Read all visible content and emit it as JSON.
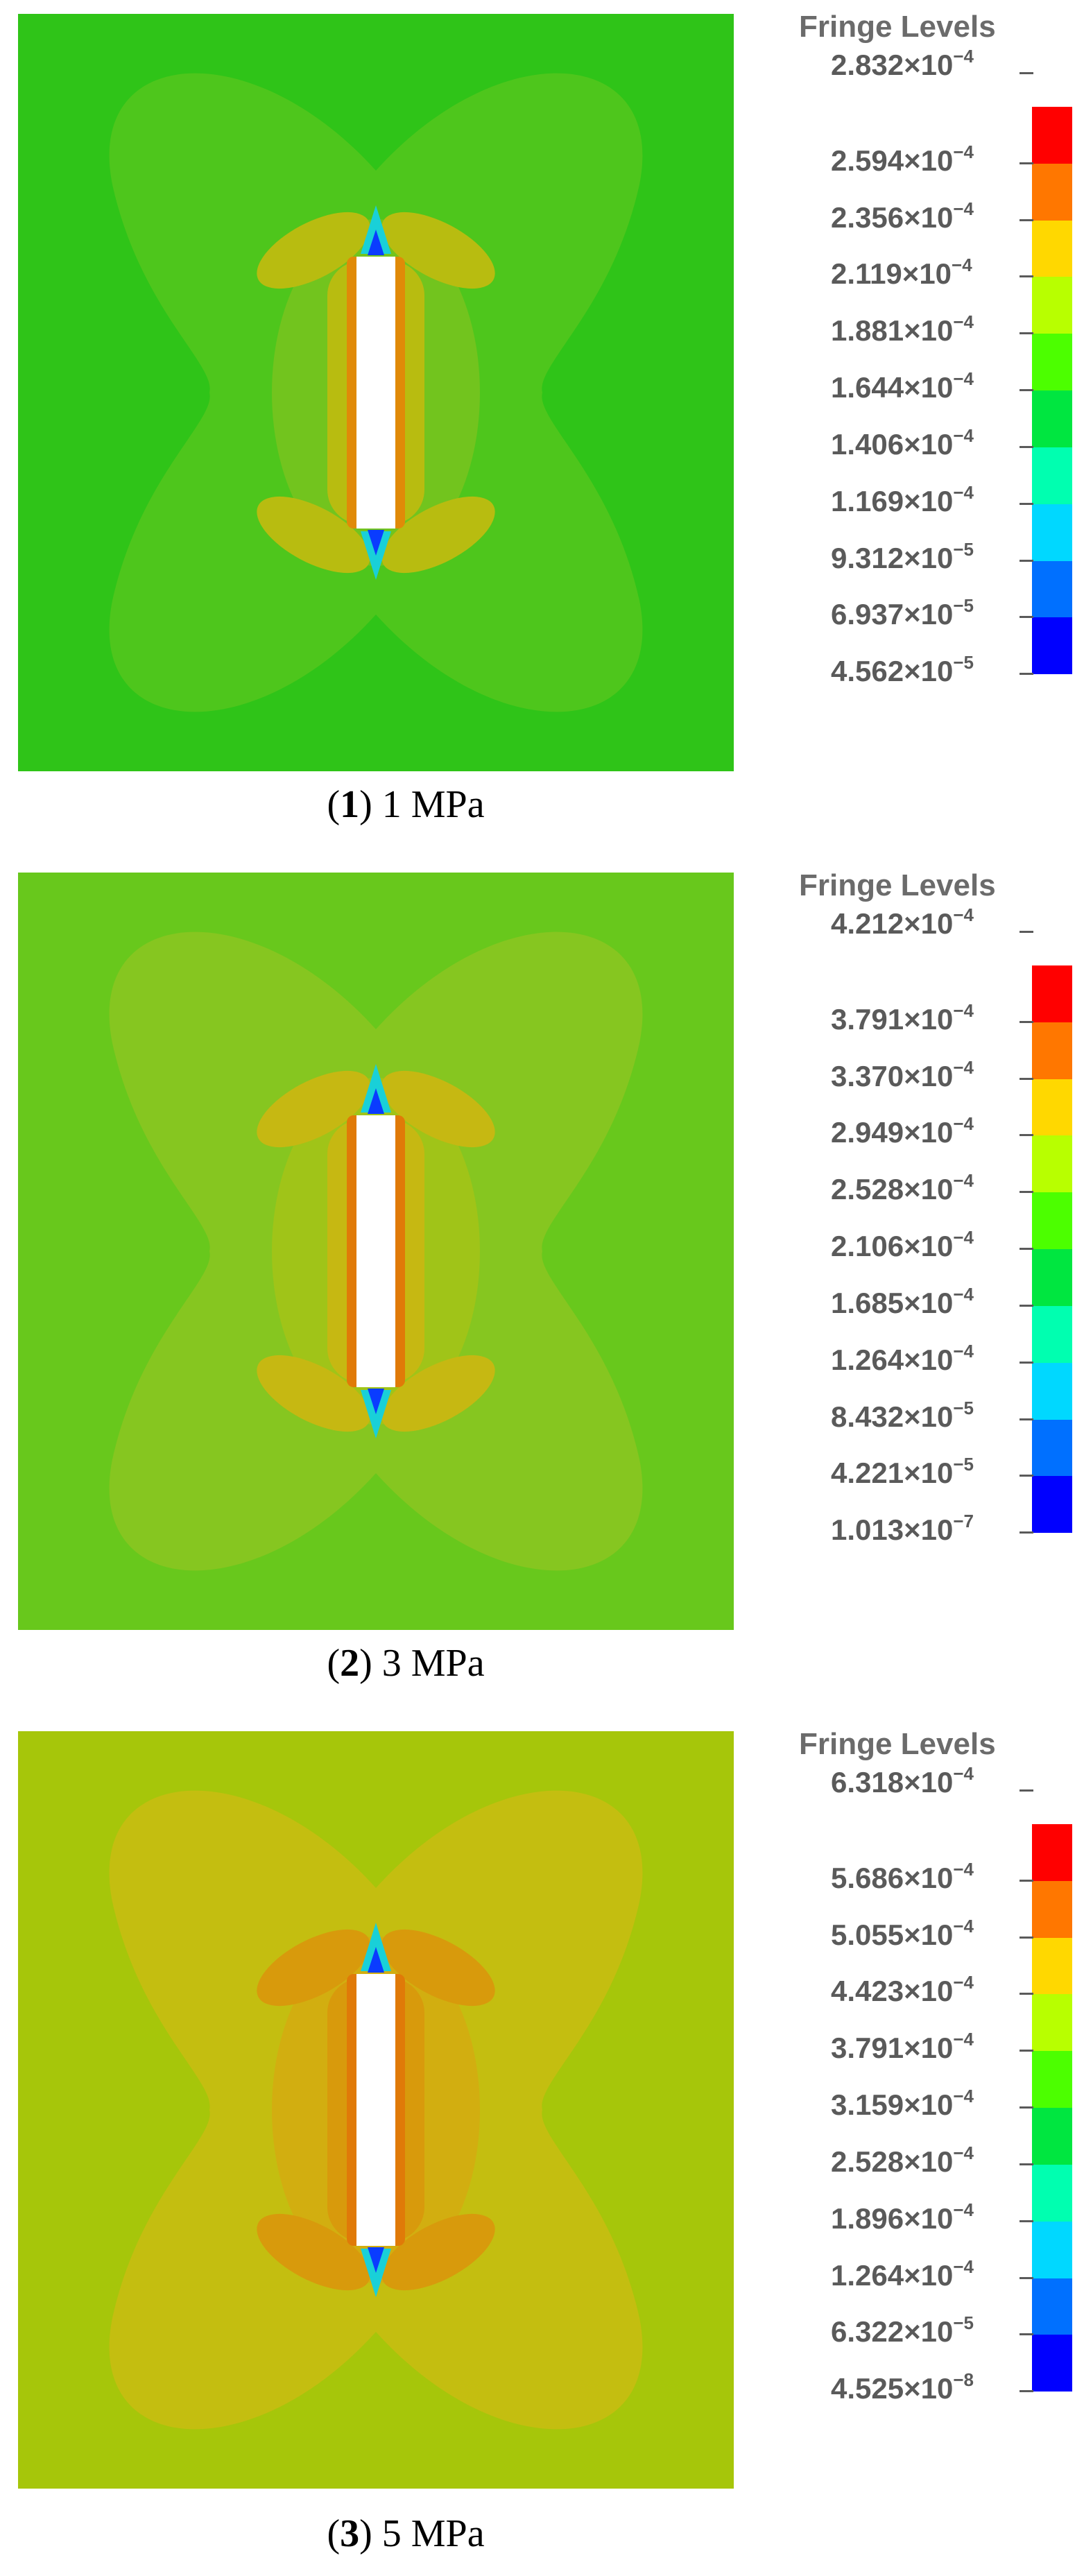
{
  "colorbar_colors": [
    "#ff0000",
    "#ff7700",
    "#ffd800",
    "#b8ff00",
    "#4cff00",
    "#00e640",
    "#00ffb0",
    "#00d8ff",
    "#0070ff",
    "#0000ff"
  ],
  "panels": [
    {
      "legend_title": "Fringe Levels",
      "levels": [
        {
          "mantissa": "2.832",
          "exp": "−4"
        },
        {
          "mantissa": "2.594",
          "exp": "−4"
        },
        {
          "mantissa": "2.356",
          "exp": "−4"
        },
        {
          "mantissa": "2.119",
          "exp": "−4"
        },
        {
          "mantissa": "1.881",
          "exp": "−4"
        },
        {
          "mantissa": "1.644",
          "exp": "−4"
        },
        {
          "mantissa": "1.406",
          "exp": "−4"
        },
        {
          "mantissa": "1.169",
          "exp": "−4"
        },
        {
          "mantissa": "9.312",
          "exp": "−5"
        },
        {
          "mantissa": "6.937",
          "exp": "−5"
        },
        {
          "mantissa": "4.562",
          "exp": "−5"
        }
      ],
      "caption_num": "1",
      "caption_text": " 1 MPa",
      "field_colors": {
        "bg": "#2fc418",
        "lobe": "#4ec61c",
        "inner": "#72c41e",
        "near": "#b8bc10",
        "edge": "#e08a08"
      }
    },
    {
      "legend_title": "Fringe Levels",
      "levels": [
        {
          "mantissa": "4.212",
          "exp": "−4"
        },
        {
          "mantissa": "3.791",
          "exp": "−4"
        },
        {
          "mantissa": "3.370",
          "exp": "−4"
        },
        {
          "mantissa": "2.949",
          "exp": "−4"
        },
        {
          "mantissa": "2.528",
          "exp": "−4"
        },
        {
          "mantissa": "2.106",
          "exp": "−4"
        },
        {
          "mantissa": "1.685",
          "exp": "−4"
        },
        {
          "mantissa": "1.264",
          "exp": "−4"
        },
        {
          "mantissa": "8.432",
          "exp": "−5"
        },
        {
          "mantissa": "4.221",
          "exp": "−5"
        },
        {
          "mantissa": "1.013",
          "exp": "−7"
        }
      ],
      "caption_num": "2",
      "caption_text": " 3 MPa",
      "field_colors": {
        "bg": "#68c81c",
        "lobe": "#86c620",
        "inner": "#a0c418",
        "near": "#c6b812",
        "edge": "#e07a08"
      }
    },
    {
      "legend_title": "Fringe Levels",
      "levels": [
        {
          "mantissa": "6.318",
          "exp": "−4"
        },
        {
          "mantissa": "5.686",
          "exp": "−4"
        },
        {
          "mantissa": "5.055",
          "exp": "−4"
        },
        {
          "mantissa": "4.423",
          "exp": "−4"
        },
        {
          "mantissa": "3.791",
          "exp": "−4"
        },
        {
          "mantissa": "3.159",
          "exp": "−4"
        },
        {
          "mantissa": "2.528",
          "exp": "−4"
        },
        {
          "mantissa": "1.896",
          "exp": "−4"
        },
        {
          "mantissa": "1.264",
          "exp": "−4"
        },
        {
          "mantissa": "6.322",
          "exp": "−5"
        },
        {
          "mantissa": "4.525",
          "exp": "−8"
        }
      ],
      "caption_num": "3",
      "caption_text": " 5 MPa",
      "field_colors": {
        "bg": "#a6c60a",
        "lobe": "#c4be10",
        "inner": "#d2ae10",
        "near": "#d89a0c",
        "edge": "#e07a08"
      }
    }
  ]
}
